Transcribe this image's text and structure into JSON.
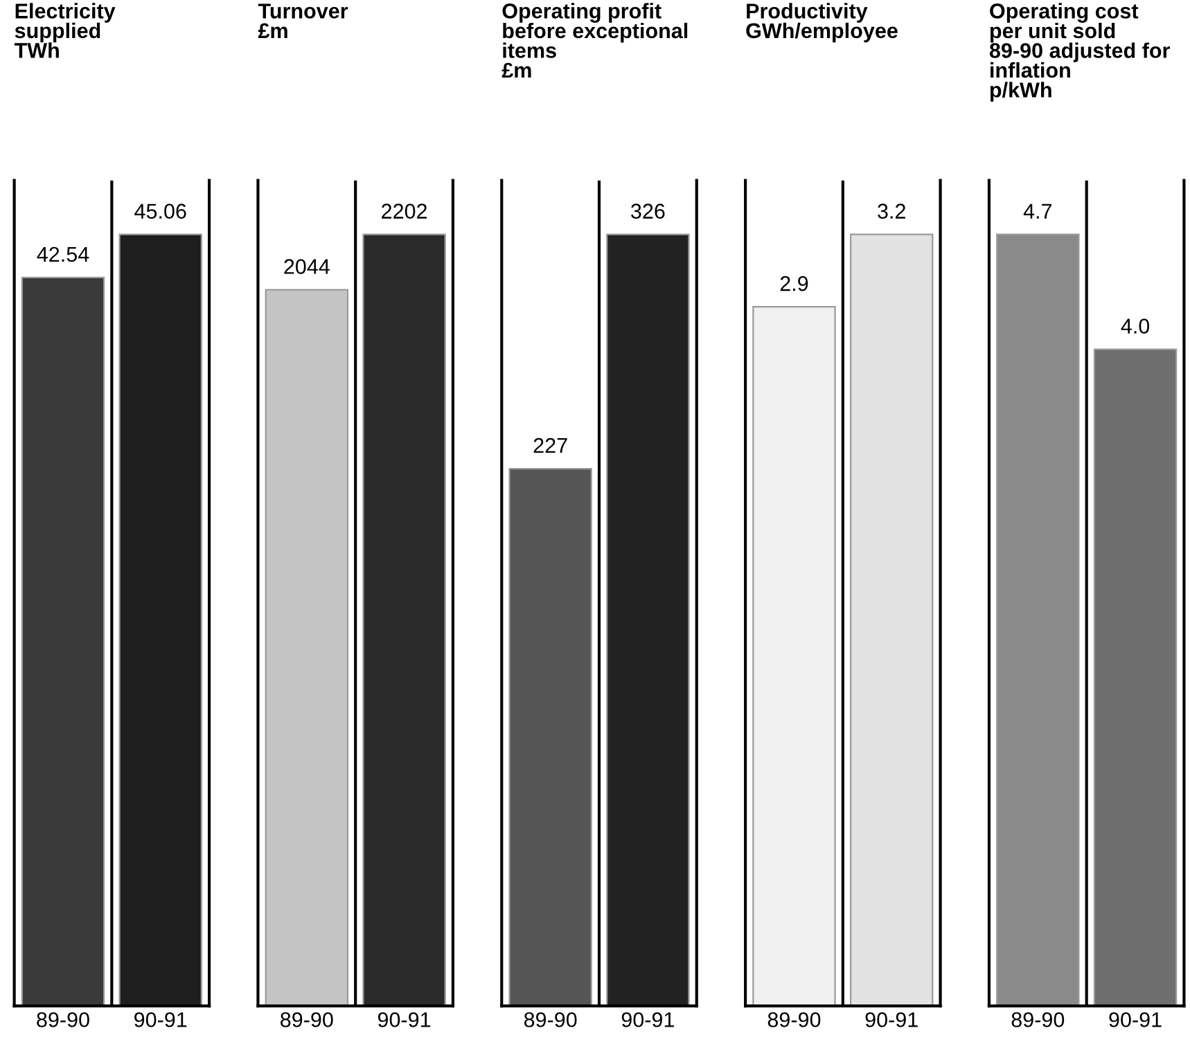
{
  "chart_data": [
    {
      "type": "bar",
      "title": "Electricity\nsupplied\nTWh",
      "categories": [
        "89-90",
        "90-91"
      ],
      "values": [
        42.54,
        45.06
      ],
      "value_labels": [
        "42.54",
        "45.06"
      ],
      "colors": [
        "#3a3a3a",
        "#1e1e1e"
      ]
    },
    {
      "type": "bar",
      "title": "Turnover\n£m",
      "categories": [
        "89-90",
        "90-91"
      ],
      "values": [
        2044,
        2202
      ],
      "value_labels": [
        "2044",
        "2202"
      ],
      "colors": [
        "#c4c4c4",
        "#2a2a2a"
      ]
    },
    {
      "type": "bar",
      "title": "Operating profit\nbefore exceptional\nitems\n£m",
      "categories": [
        "89-90",
        "90-91"
      ],
      "values": [
        227,
        326
      ],
      "value_labels": [
        "227",
        "326"
      ],
      "colors": [
        "#555555",
        "#222222"
      ]
    },
    {
      "type": "bar",
      "title": "Productivity\nGWh/employee",
      "categories": [
        "89-90",
        "90-91"
      ],
      "values": [
        2.9,
        3.2
      ],
      "value_labels": [
        "2.9",
        "3.2"
      ],
      "colors": [
        "#f0f0f0",
        "#e2e2e2"
      ]
    },
    {
      "type": "bar",
      "title": "Operating cost\nper unit sold\n89-90 adjusted for\ninflation\np/kWh",
      "categories": [
        "89-90",
        "90-91"
      ],
      "values": [
        4.7,
        4.0
      ],
      "value_labels": [
        "4.7",
        "4.0"
      ],
      "colors": [
        "#8a8a8a",
        "#6e6e6e"
      ]
    }
  ]
}
